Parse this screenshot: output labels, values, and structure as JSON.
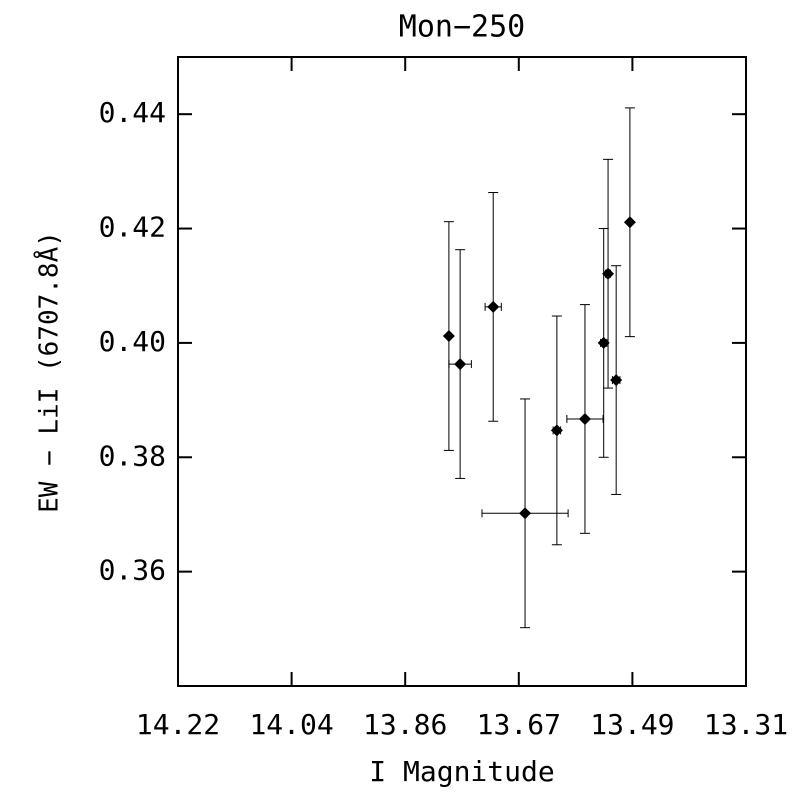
{
  "chart_data": {
    "type": "scatter",
    "title": "Mon−250",
    "xlabel": "I Magnitude",
    "ylabel": "EW − LiI (6707.8Å)",
    "x": [
      13.786,
      13.768,
      13.715,
      13.664,
      13.613,
      13.568,
      13.538,
      13.531,
      13.518,
      13.496
    ],
    "values": [
      0.4012,
      0.3963,
      0.4063,
      0.3702,
      0.3847,
      0.3867,
      0.4,
      0.4121,
      0.3935,
      0.4211
    ],
    "xerr": [
      0.002,
      0.018,
      0.013,
      0.069,
      0.006,
      0.029,
      0.005,
      0.004,
      0.006,
      0.002
    ],
    "yerr": [
      0.02,
      0.02,
      0.02,
      0.02,
      0.02,
      0.02,
      0.02,
      0.02,
      0.02,
      0.02
    ],
    "color": "#000000",
    "xlim": [
      14.22,
      13.31
    ],
    "xticks": [
      14.22,
      {
        "value": 14.038,
        "label": "14.04"
      },
      {
        "value": 13.856,
        "label": "13.86"
      },
      {
        "value": 13.674,
        "label": "13.67"
      },
      {
        "value": 13.492,
        "label": "13.49"
      },
      13.31
    ],
    "ylim": [
      0.34,
      0.45
    ],
    "yticks": [
      0.36,
      0.38,
      {
        "value": 0.4,
        "label": "0.40"
      },
      0.42,
      0.44
    ]
  }
}
